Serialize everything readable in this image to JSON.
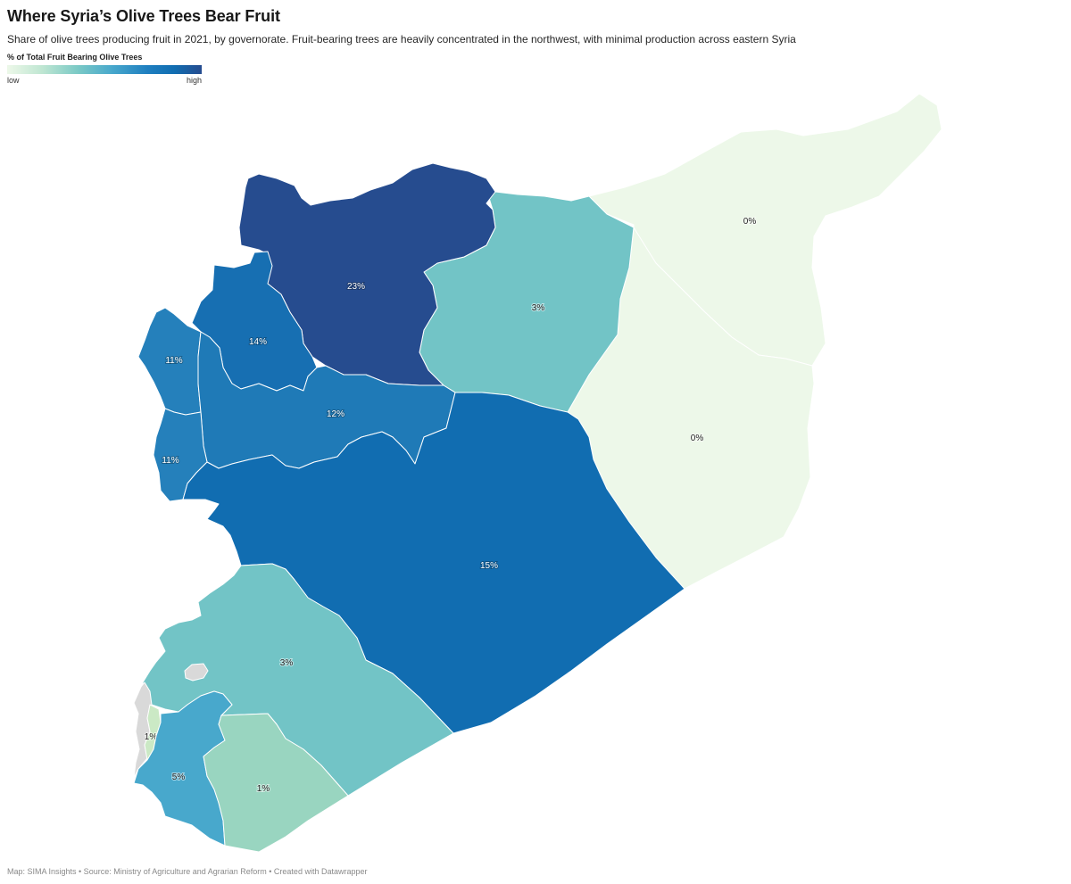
{
  "title": "Where Syria’s Olive Trees Bear Fruit",
  "subtitle": "Share of olive trees producing fruit in 2021, by governorate. Fruit-bearing trees are heavily concentrated in the northwest, with minimal production across eastern Syria",
  "legend": {
    "title": "% of Total Fruit Bearing Olive Trees",
    "low": "low",
    "high": "high"
  },
  "colors": {
    "c23": "#264c8f",
    "c15": "#116db1",
    "c14": "#176fb2",
    "c12": "#1f7ab7",
    "c11": "#2580bb",
    "c5": "#48a8cc",
    "c3": "#72c4c6",
    "c1": "#99d5c0",
    "c1b": "#cbe9c5",
    "c0": "#edf8e9",
    "nodata": "#d9d9d9"
  },
  "regions": [
    {
      "name": "Aleppo",
      "value": 23,
      "label": "23%"
    },
    {
      "name": "Hama",
      "value": 12,
      "label": "12%"
    },
    {
      "name": "Idlib",
      "value": 14,
      "label": "14%"
    },
    {
      "name": "Latakia",
      "value": 11,
      "label": "11%"
    },
    {
      "name": "Tartus",
      "value": 11,
      "label": "11%"
    },
    {
      "name": "Homs",
      "value": 15,
      "label": "15%"
    },
    {
      "name": "Ar-Raqqah",
      "value": 3,
      "label": "3%"
    },
    {
      "name": "Al-Hasakah",
      "value": 0,
      "label": "0%"
    },
    {
      "name": "Deir ez-Zor",
      "value": 0,
      "label": "0%"
    },
    {
      "name": "Rural Damascus",
      "value": 3,
      "label": "3%"
    },
    {
      "name": "Quneitra",
      "value": 1,
      "label": "1%"
    },
    {
      "name": "Daraa",
      "value": 5,
      "label": "5%"
    },
    {
      "name": "As-Suwayda",
      "value": 1,
      "label": "1%"
    }
  ],
  "footer": "Map: SIMA Insights • Source: Ministry of Agriculture and Agrarian Reform • Created with Datawrapper"
}
